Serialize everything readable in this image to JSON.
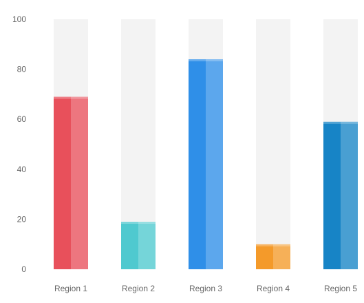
{
  "chart_data": {
    "type": "bar",
    "title": "",
    "xlabel": "",
    "ylabel": "",
    "categories": [
      "Region 1",
      "Region 2",
      "Region 3",
      "Region 4",
      "Region 5"
    ],
    "values": [
      69,
      19,
      84,
      10,
      59
    ],
    "ylim": [
      0,
      100
    ],
    "yticks": [
      0,
      20,
      40,
      60,
      80,
      100
    ],
    "grid": false,
    "background_track": true,
    "colors": [
      "#e8505b",
      "#4fc9cf",
      "#2f8fe8",
      "#f49a2a",
      "#1784c6"
    ],
    "track_color": "#f3f3f3",
    "label_color": "#666666"
  }
}
